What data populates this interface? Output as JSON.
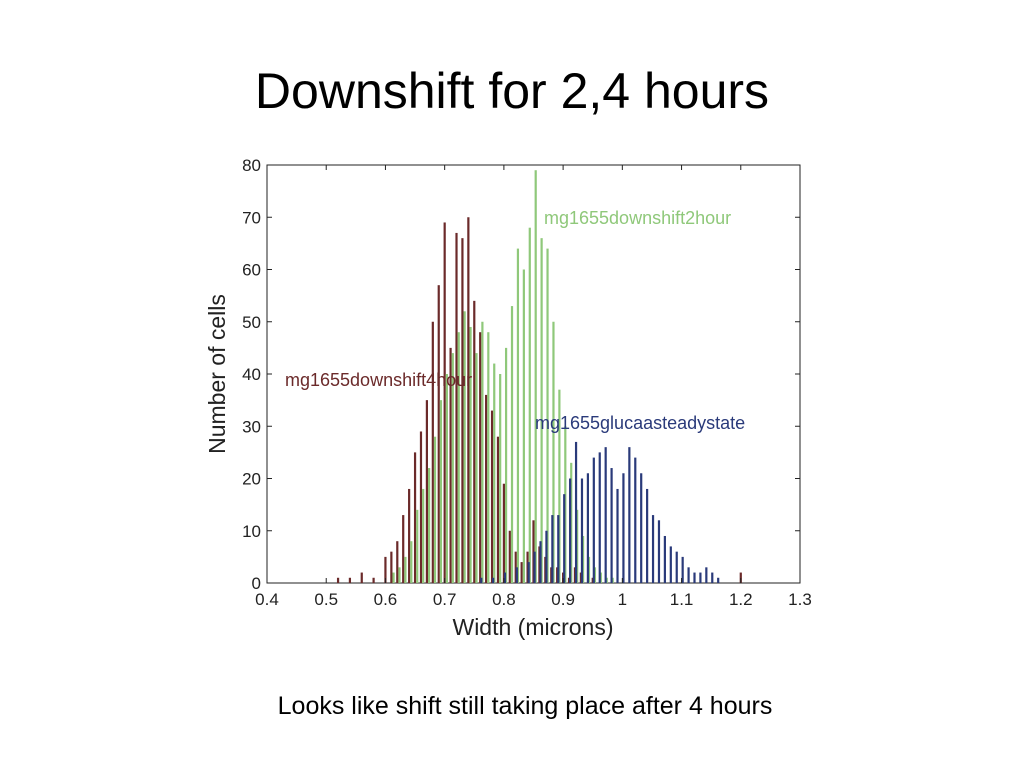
{
  "slide": {
    "title": "Downshift for 2,4 hours",
    "caption": "Looks like shift still taking place after 4 hours"
  },
  "chart_data": {
    "type": "bar",
    "xlabel": "Width (microns)",
    "ylabel": "Number of cells",
    "xlim": [
      0.4,
      1.3
    ],
    "ylim": [
      0,
      80
    ],
    "xticks": [
      0.4,
      0.5,
      0.6,
      0.7,
      0.8,
      0.9,
      1,
      1.1,
      1.2,
      1.3
    ],
    "yticks": [
      0,
      10,
      20,
      30,
      40,
      50,
      60,
      70,
      80
    ],
    "grid": false,
    "series": [
      {
        "name": "mg1655downshift4hour",
        "color": "#6b2a2a",
        "x": [
          0.52,
          0.54,
          0.56,
          0.58,
          0.6,
          0.61,
          0.62,
          0.63,
          0.64,
          0.65,
          0.66,
          0.67,
          0.68,
          0.69,
          0.7,
          0.71,
          0.72,
          0.73,
          0.74,
          0.75,
          0.76,
          0.77,
          0.78,
          0.79,
          0.8,
          0.81,
          0.82,
          0.83,
          0.84,
          0.85,
          0.86,
          0.87,
          0.88,
          0.89,
          0.9,
          0.91,
          0.92,
          0.93,
          0.95,
          1.2
        ],
        "values": [
          1,
          1,
          2,
          1,
          5,
          6,
          8,
          13,
          18,
          25,
          29,
          35,
          50,
          57,
          69,
          45,
          67,
          66,
          70,
          54,
          48,
          36,
          33,
          28,
          19,
          10,
          6,
          4,
          6,
          12,
          7,
          5,
          3,
          3,
          2,
          1,
          3,
          2,
          1,
          2
        ]
      },
      {
        "name": "mg1655downshift2hour",
        "color": "#8fc87a",
        "x": [
          0.61,
          0.62,
          0.63,
          0.64,
          0.65,
          0.66,
          0.67,
          0.68,
          0.69,
          0.7,
          0.71,
          0.72,
          0.73,
          0.74,
          0.75,
          0.76,
          0.77,
          0.78,
          0.79,
          0.8,
          0.81,
          0.82,
          0.83,
          0.84,
          0.85,
          0.86,
          0.87,
          0.88,
          0.89,
          0.9,
          0.91,
          0.92,
          0.93,
          0.94,
          0.95,
          0.96,
          0.97,
          0.98
        ],
        "values": [
          2,
          3,
          5,
          8,
          14,
          18,
          22,
          28,
          35,
          40,
          44,
          48,
          52,
          49,
          44,
          50,
          48,
          42,
          40,
          45,
          53,
          64,
          60,
          68,
          79,
          66,
          64,
          50,
          37,
          30,
          23,
          14,
          9,
          5,
          3,
          2,
          1,
          1
        ]
      },
      {
        "name": "mg1655glucaasteadystate",
        "color": "#2a3a7a",
        "x": [
          0.76,
          0.78,
          0.8,
          0.82,
          0.84,
          0.85,
          0.86,
          0.87,
          0.88,
          0.89,
          0.9,
          0.91,
          0.92,
          0.93,
          0.94,
          0.95,
          0.96,
          0.97,
          0.98,
          0.99,
          1.0,
          1.01,
          1.02,
          1.03,
          1.04,
          1.05,
          1.06,
          1.07,
          1.08,
          1.09,
          1.1,
          1.11,
          1.12,
          1.13,
          1.14,
          1.15,
          1.16
        ],
        "values": [
          1,
          1,
          2,
          3,
          4,
          6,
          8,
          10,
          13,
          13,
          17,
          20,
          27,
          20,
          21,
          24,
          25,
          26,
          22,
          18,
          21,
          26,
          24,
          21,
          18,
          13,
          12,
          9,
          7,
          6,
          5,
          3,
          2,
          2,
          3,
          2,
          1
        ]
      }
    ]
  }
}
